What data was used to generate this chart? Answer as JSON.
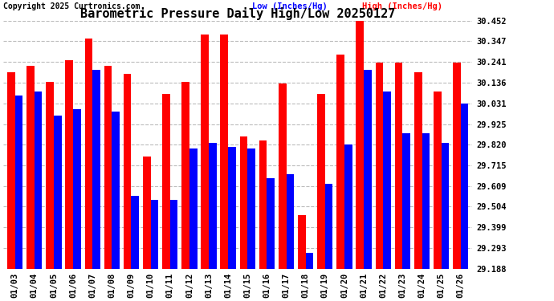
{
  "title": "Barometric Pressure Daily High/Low 20250127",
  "copyright": "Copyright 2025 Curtronics.com",
  "legend_low": "Low (Inches/Hg)",
  "legend_high": "High (Inches/Hg)",
  "dates": [
    "01/03",
    "01/04",
    "01/05",
    "01/06",
    "01/07",
    "01/08",
    "01/09",
    "01/10",
    "01/11",
    "01/12",
    "01/13",
    "01/14",
    "01/15",
    "01/16",
    "01/17",
    "01/18",
    "01/19",
    "01/20",
    "01/21",
    "01/22",
    "01/23",
    "01/24",
    "01/25",
    "01/26"
  ],
  "high_values": [
    30.19,
    30.22,
    30.14,
    30.25,
    30.36,
    30.22,
    30.18,
    29.76,
    30.08,
    30.14,
    30.38,
    30.38,
    29.86,
    29.84,
    30.13,
    29.46,
    30.08,
    30.28,
    30.45,
    30.24,
    30.24,
    30.19,
    30.09,
    30.24
  ],
  "low_values": [
    30.07,
    30.09,
    29.97,
    30.0,
    30.2,
    29.99,
    29.56,
    29.54,
    29.54,
    29.8,
    29.83,
    29.81,
    29.8,
    29.65,
    29.67,
    29.27,
    29.62,
    29.82,
    30.2,
    30.09,
    29.88,
    29.88,
    29.83,
    30.03
  ],
  "high_color": "#ff0000",
  "low_color": "#0000ff",
  "bg_color": "#ffffff",
  "ylim_min": 29.188,
  "ylim_max": 30.452,
  "yticks": [
    29.188,
    29.293,
    29.399,
    29.504,
    29.609,
    29.715,
    29.82,
    29.925,
    30.031,
    30.136,
    30.241,
    30.347,
    30.452
  ],
  "grid_color": "#aaaaaa",
  "title_fontsize": 11,
  "tick_fontsize": 7.5,
  "bar_width": 0.4
}
